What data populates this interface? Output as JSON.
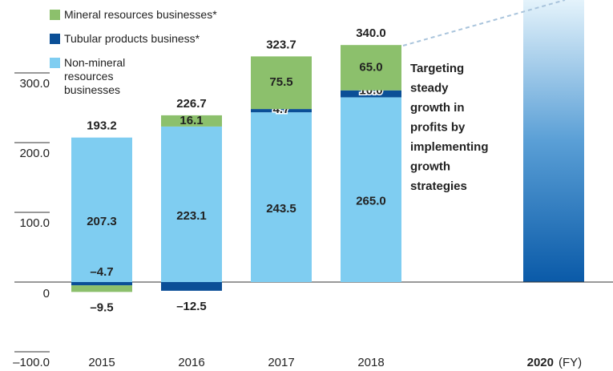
{
  "chart_data": {
    "type": "stacked_bar",
    "categories": [
      "2015",
      "2016",
      "2017",
      "2018"
    ],
    "series": [
      {
        "name": "Non-mineral resources businesses",
        "color": "#7fcdf1",
        "values": [
          207.3,
          223.1,
          243.5,
          265.0
        ],
        "value_labels": [
          "207.3",
          "223.1",
          "243.5",
          "265.0"
        ]
      },
      {
        "name": "Tubular products business*",
        "color": "#0b4f97",
        "values": [
          -4.7,
          -12.5,
          4.7,
          10.0
        ],
        "value_labels": [
          "–4.7",
          "–12.5",
          "4.7",
          "10.0"
        ]
      },
      {
        "name": "Mineral resources businesses*",
        "color": "#8cc06c",
        "values": [
          -9.5,
          16.1,
          75.5,
          65.0
        ],
        "value_labels": [
          "–9.5",
          "16.1",
          "75.5",
          "65.0"
        ]
      }
    ],
    "totals": [
      193.2,
      226.7,
      323.7,
      340.0
    ],
    "total_labels": [
      "193.2",
      "226.7",
      "323.7",
      "340.0"
    ],
    "target_category": "2020",
    "x_unit": "(FY)",
    "annotation": [
      "Targeting",
      "steady",
      "growth in",
      "profits by",
      "implementing",
      "growth",
      "strategies"
    ],
    "ylim": [
      -100,
      400
    ],
    "yticks": [
      {
        "value": -100,
        "label": "–100.0"
      },
      0,
      {
        "value": 100,
        "label": "100.0"
      },
      {
        "value": 200,
        "label": "200.0"
      },
      {
        "value": 300,
        "label": "300.0"
      }
    ]
  }
}
